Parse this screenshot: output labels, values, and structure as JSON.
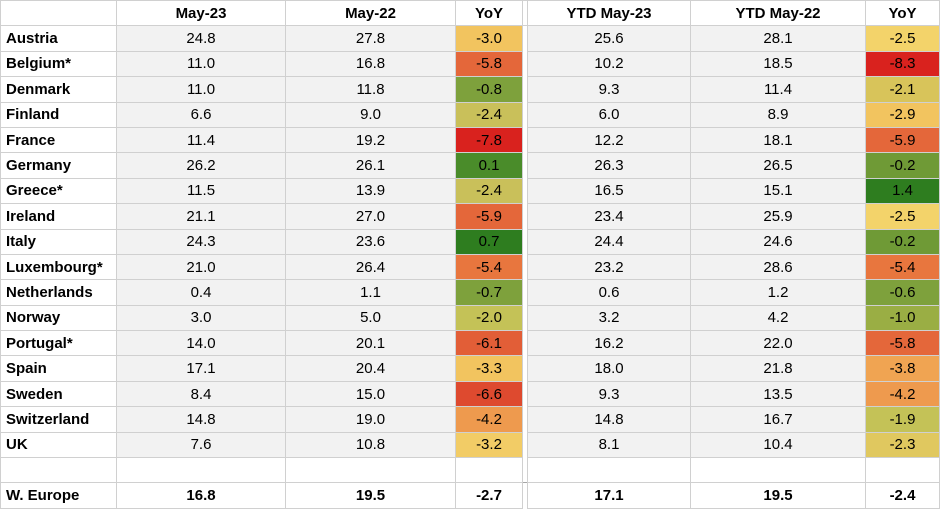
{
  "headers": {
    "country": "",
    "may23": "May-23",
    "may22": "May-22",
    "yoy": "YoY",
    "ytd23": "YTD May-23",
    "ytd22": "YTD May-22",
    "ytdyoy": "YoY"
  },
  "rows": [
    {
      "country": "Austria",
      "may23": "24.8",
      "may22": "27.8",
      "yoy": "-3.0",
      "yoy_color": "#f2c45f",
      "ytd23": "25.6",
      "ytd22": "28.1",
      "ytdyoy": "-2.5",
      "ytdyoy_color": "#f3d36a"
    },
    {
      "country": "Belgium*",
      "may23": "11.0",
      "may22": "16.8",
      "yoy": "-5.8",
      "yoy_color": "#e4673a",
      "ytd23": "10.2",
      "ytd22": "18.5",
      "ytdyoy": "-8.3",
      "ytdyoy_color": "#d9221e"
    },
    {
      "country": "Denmark",
      "may23": "11.0",
      "may22": "11.8",
      "yoy": "-0.8",
      "yoy_color": "#7ea13c",
      "ytd23": "9.3",
      "ytd22": "11.4",
      "ytdyoy": "-2.1",
      "ytdyoy_color": "#d8c45a"
    },
    {
      "country": "Finland",
      "may23": "6.6",
      "may22": "9.0",
      "yoy": "-2.4",
      "yoy_color": "#c9c05a",
      "ytd23": "6.0",
      "ytd22": "8.9",
      "ytdyoy": "-2.9",
      "ytdyoy_color": "#f2c45f"
    },
    {
      "country": "France",
      "may23": "11.4",
      "may22": "19.2",
      "yoy": "-7.8",
      "yoy_color": "#d9221e",
      "ytd23": "12.2",
      "ytd22": "18.1",
      "ytdyoy": "-5.9",
      "ytdyoy_color": "#e4673a"
    },
    {
      "country": "Germany",
      "may23": "26.2",
      "may22": "26.1",
      "yoy": "0.1",
      "yoy_color": "#4a8c2a",
      "ytd23": "26.3",
      "ytd22": "26.5",
      "ytdyoy": "-0.2",
      "ytdyoy_color": "#6f9a36"
    },
    {
      "country": "Greece*",
      "may23": "11.5",
      "may22": "13.9",
      "yoy": "-2.4",
      "yoy_color": "#c9c05a",
      "ytd23": "16.5",
      "ytd22": "15.1",
      "ytdyoy": "1.4",
      "ytdyoy_color": "#2e7d1f"
    },
    {
      "country": "Ireland",
      "may23": "21.1",
      "may22": "27.0",
      "yoy": "-5.9",
      "yoy_color": "#e4673a",
      "ytd23": "23.4",
      "ytd22": "25.9",
      "ytdyoy": "-2.5",
      "ytdyoy_color": "#f3d36a"
    },
    {
      "country": "Italy",
      "may23": "24.3",
      "may22": "23.6",
      "yoy": "0.7",
      "yoy_color": "#2e7d1f",
      "ytd23": "24.4",
      "ytd22": "24.6",
      "ytdyoy": "-0.2",
      "ytdyoy_color": "#6f9a36"
    },
    {
      "country": "Luxembourg*",
      "may23": "21.0",
      "may22": "26.4",
      "yoy": "-5.4",
      "yoy_color": "#e8763e",
      "ytd23": "23.2",
      "ytd22": "28.6",
      "ytdyoy": "-5.4",
      "ytdyoy_color": "#e8763e"
    },
    {
      "country": "Netherlands",
      "may23": "0.4",
      "may22": "1.1",
      "yoy": "-0.7",
      "yoy_color": "#7ea13c",
      "ytd23": "0.6",
      "ytd22": "1.2",
      "ytdyoy": "-0.6",
      "ytdyoy_color": "#7ea13c"
    },
    {
      "country": "Norway",
      "may23": "3.0",
      "may22": "5.0",
      "yoy": "-2.0",
      "yoy_color": "#c4c257",
      "ytd23": "3.2",
      "ytd22": "4.2",
      "ytdyoy": "-1.0",
      "ytdyoy_color": "#9aae44"
    },
    {
      "country": "Portugal*",
      "may23": "14.0",
      "may22": "20.1",
      "yoy": "-6.1",
      "yoy_color": "#e25e37",
      "ytd23": "16.2",
      "ytd22": "22.0",
      "ytdyoy": "-5.8",
      "ytdyoy_color": "#e4673a"
    },
    {
      "country": "Spain",
      "may23": "17.1",
      "may22": "20.4",
      "yoy": "-3.3",
      "yoy_color": "#f2c45f",
      "ytd23": "18.0",
      "ytd22": "21.8",
      "ytdyoy": "-3.8",
      "ytdyoy_color": "#f0a452"
    },
    {
      "country": "Sweden",
      "may23": "8.4",
      "may22": "15.0",
      "yoy": "-6.6",
      "yoy_color": "#de4a2f",
      "ytd23": "9.3",
      "ytd22": "13.5",
      "ytdyoy": "-4.2",
      "ytdyoy_color": "#ee9a4e"
    },
    {
      "country": "Switzerland",
      "may23": "14.8",
      "may22": "19.0",
      "yoy": "-4.2",
      "yoy_color": "#ee9a4e",
      "ytd23": "14.8",
      "ytd22": "16.7",
      "ytdyoy": "-1.9",
      "ytdyoy_color": "#c4c257"
    },
    {
      "country": "UK",
      "may23": "7.6",
      "may22": "10.8",
      "yoy": "-3.2",
      "yoy_color": "#f2cc66",
      "ytd23": "8.1",
      "ytd22": "10.4",
      "ytdyoy": "-2.3",
      "ytdyoy_color": "#e0c85f"
    }
  ],
  "total": {
    "country": "W. Europe",
    "may23": "16.8",
    "may22": "19.5",
    "yoy": "-2.7",
    "ytd23": "17.1",
    "ytd22": "19.5",
    "ytdyoy": "-2.4"
  }
}
